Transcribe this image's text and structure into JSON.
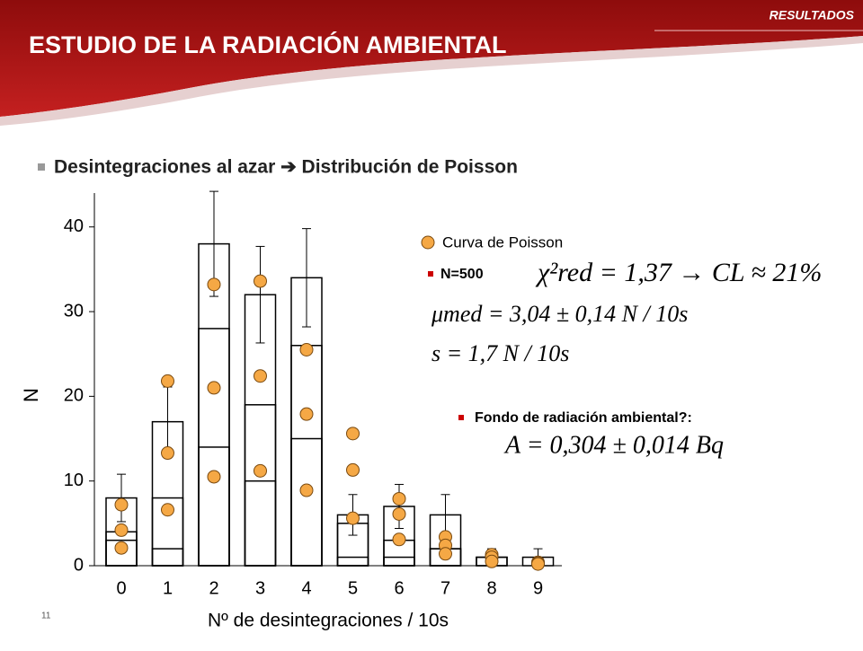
{
  "slide": {
    "section": "RESULTADOS",
    "title": "ESTUDIO DE LA RADIACIÓN AMBIENTAL",
    "bullet": "Desintegraciones al azar ➔ Distribución de Poisson",
    "page": "11"
  },
  "chart_data": {
    "type": "bar",
    "ylabel": "N",
    "xlabel": "Nº de desintegraciones / 10s",
    "categories": [
      "0",
      "1",
      "2",
      "3",
      "4",
      "5",
      "6",
      "7",
      "8",
      "9"
    ],
    "ylim": [
      0,
      44
    ],
    "yticks": [
      0,
      10,
      20,
      30,
      40
    ],
    "series": [
      {
        "color": "#000000",
        "values": [
          8,
          17,
          38,
          32,
          34,
          6,
          7,
          6,
          1,
          1
        ],
        "errors": [
          2.8,
          4.1,
          6.2,
          5.7,
          5.8,
          2.4,
          2.6,
          2.4,
          1,
          1
        ]
      },
      {
        "color": "#000000",
        "values": [
          4,
          8,
          28,
          19,
          26,
          5,
          3,
          2,
          1,
          0
        ]
      },
      {
        "color": "#000000",
        "values": [
          3,
          2,
          14,
          10,
          15,
          1,
          1,
          2,
          0,
          0
        ]
      }
    ],
    "points": {
      "name": "Curva de Poisson",
      "color": "#f5a845",
      "values": [
        [
          7.2,
          21.8,
          33.2,
          33.6,
          25.5,
          15.6,
          7.9,
          3.4,
          1.3,
          0.4
        ],
        [
          4.2,
          13.3,
          21,
          22.4,
          17.9,
          11.3,
          6.1,
          2.4,
          1,
          0.3
        ],
        [
          2.1,
          6.6,
          10.5,
          11.2,
          8.9,
          5.6,
          3.1,
          1.4,
          0.5,
          0.2
        ]
      ]
    },
    "annotations": {
      "n": "N=500",
      "chi": "χ²red = 1,37 → CL ≈ 21%",
      "mu": "μmed = 3,04 ± 0,14 N / 10s",
      "s": "s = 1,7 N / 10s",
      "fondo": "Fondo de radiación ambiental?:",
      "a": "A = 0,304 ± 0,014 Bq"
    }
  }
}
